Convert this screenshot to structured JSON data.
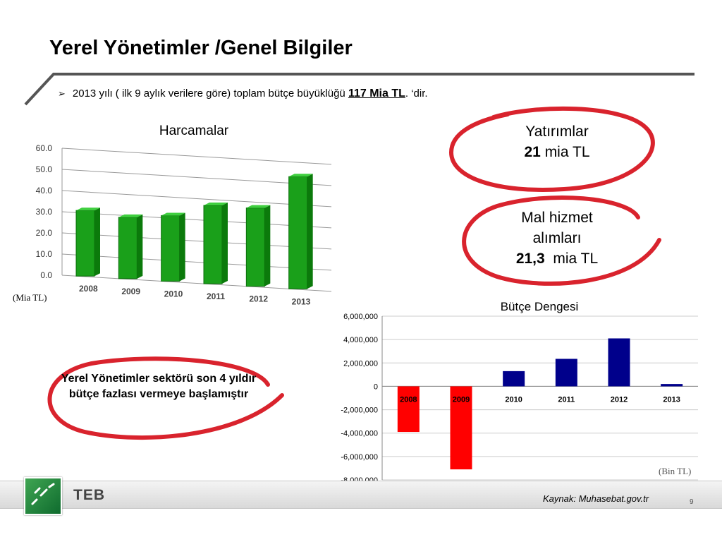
{
  "slide": {
    "title": "Yerel Yönetimler /Genel Bilgiler",
    "bullet_prefix": "2013 yılı ( ilk 9 aylık verilere göre) toplam bütçe büyüklüğü",
    "bullet_value": "117 Mia TL",
    "bullet_suffix": ". ‘dir.",
    "page_number": "9",
    "source": "Kaynak: Muhasebat.gov.tr",
    "logo_text": "TEB"
  },
  "callouts": {
    "yatirimlar": {
      "line1": "Yatırımlar",
      "value": "21",
      "unit": " mia TL"
    },
    "mal_hizmet": {
      "line1": "Mal hizmet",
      "line2": "alımları",
      "value": "21,3",
      "unit": "  mia TL"
    },
    "yerel": {
      "text": "Yerel Yönetimler sektörü son 4 yıldır bütçe fazlası vermeye başlamıştır"
    }
  },
  "colors": {
    "harcama_bar": "#1aa01a",
    "surplus_bar": "#00008b",
    "deficit_bar": "#ff0000",
    "oval": "#d9232d",
    "accent": "#555555"
  },
  "chart_data": [
    {
      "type": "bar",
      "title": "Harcamalar",
      "unit_label": "(Mia TL)",
      "categories": [
        "2008",
        "2009",
        "2010",
        "2011",
        "2012",
        "2013"
      ],
      "values": [
        31,
        29,
        31,
        37,
        37,
        53
      ],
      "ylim": [
        0,
        60
      ],
      "yticks": [
        "0.0",
        "10.0",
        "20.0",
        "30.0",
        "40.0",
        "50.0",
        "60.0"
      ],
      "grid": true
    },
    {
      "type": "bar",
      "title": "Bütçe Dengesi",
      "unit_label": "(Bin TL)",
      "categories": [
        "2008",
        "2009",
        "2010",
        "2011",
        "2012",
        "2013"
      ],
      "values": [
        -3900000,
        -7100000,
        1300000,
        2350000,
        4100000,
        200000
      ],
      "ylim": [
        -8000000,
        6000000
      ],
      "yticks": [
        "6,000,000",
        "4,000,000",
        "2,000,000",
        "0",
        "-2,000,000",
        "-4,000,000",
        "-6,000,000",
        "-8,000,000"
      ],
      "grid": true
    }
  ]
}
